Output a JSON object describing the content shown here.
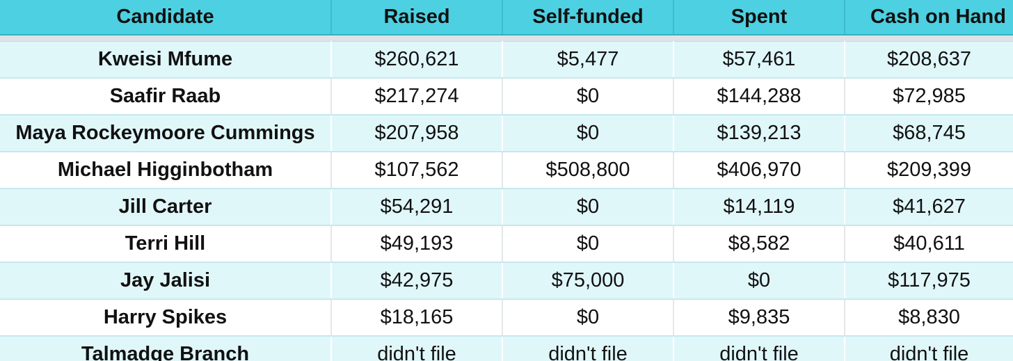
{
  "table": {
    "headers": [
      "Candidate",
      "Raised",
      "Self-funded",
      "Spent",
      "Cash on Hand"
    ],
    "rows": [
      [
        "Kweisi Mfume",
        "$260,621",
        "$5,477",
        "$57,461",
        "$208,637"
      ],
      [
        "Saafir Raab",
        "$217,274",
        "$0",
        "$144,288",
        "$72,985"
      ],
      [
        "Maya Rockeymoore Cummings",
        "$207,958",
        "$0",
        "$139,213",
        "$68,745"
      ],
      [
        "Michael Higginbotham",
        "$107,562",
        "$508,800",
        "$406,970",
        "$209,399"
      ],
      [
        "Jill Carter",
        "$54,291",
        "$0",
        "$14,119",
        "$41,627"
      ],
      [
        "Terri Hill",
        "$49,193",
        "$0",
        "$8,582",
        "$40,611"
      ],
      [
        "Jay Jalisi",
        "$42,975",
        "$75,000",
        "$0",
        "$117,975"
      ],
      [
        "Harry Spikes",
        "$18,165",
        "$0",
        "$9,835",
        "$8,830"
      ],
      [
        "Talmadge Branch",
        "didn't file",
        "didn't file",
        "didn't file",
        "didn't file"
      ]
    ]
  },
  "colors": {
    "header_background": "#4dd0e1",
    "stripe_background": "#e0f7fa",
    "row_background": "#ffffff",
    "text": "#111111"
  }
}
